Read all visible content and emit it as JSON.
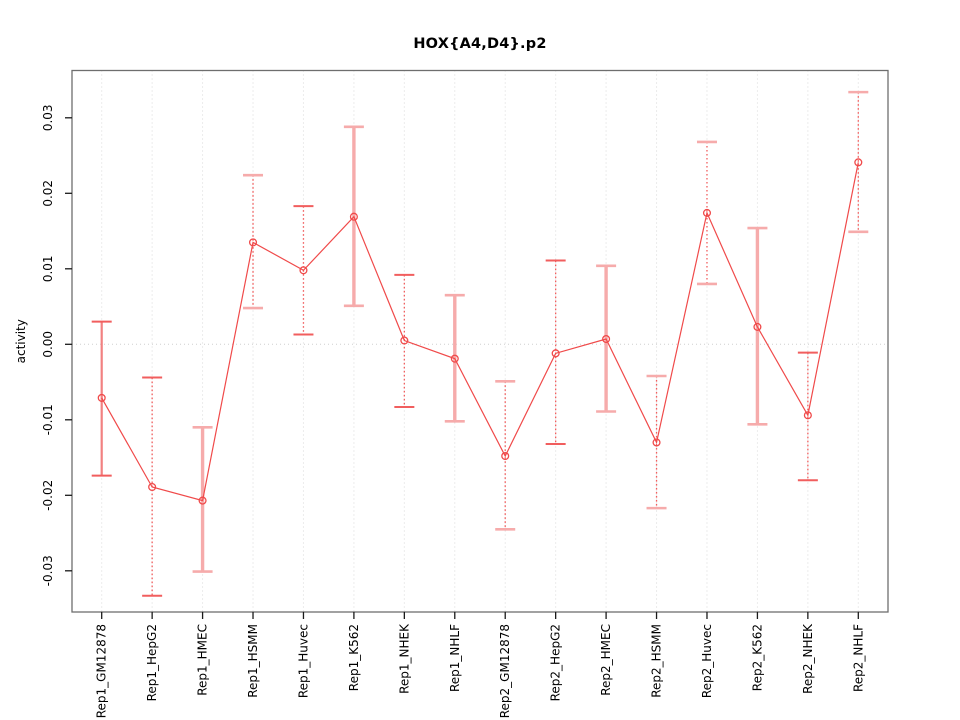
{
  "title": "HOX{A4,D4}.p2",
  "chart_data": {
    "type": "scatter",
    "title": "HOX{A4,D4}.p2",
    "xlabel": "",
    "ylabel": "activity",
    "ylim": [
      -0.0355,
      0.0363
    ],
    "yticks": [
      0.03,
      0.02,
      0.01,
      0.0,
      -0.01,
      -0.02,
      -0.03
    ],
    "ytick_labels": [
      "0.03",
      "0.02",
      "0.01",
      "0.00",
      "-0.01",
      "-0.02",
      "-0.03"
    ],
    "grid": "vertical dotted gridline at each category; dotted horizontal reference line at y=0; full box border",
    "legend": "none",
    "categories": [
      "Rep1_GM12878",
      "Rep1_HepG2",
      "Rep1_HMEC",
      "Rep1_HSMM",
      "Rep1_Huvec",
      "Rep1_K562",
      "Rep1_NHEK",
      "Rep1_NHLF",
      "Rep2_GM12878",
      "Rep2_HepG2",
      "Rep2_HMEC",
      "Rep2_HSMM",
      "Rep2_Huvec",
      "Rep2_K562",
      "Rep2_NHEK",
      "Rep2_NHLF"
    ],
    "series": [
      {
        "name": "activity",
        "marker": "open-circle",
        "connected": true,
        "values": [
          -0.0071,
          -0.0189,
          -0.0207,
          0.0135,
          0.0098,
          0.0169,
          0.0005,
          -0.0019,
          -0.0148,
          -0.0012,
          0.0007,
          -0.013,
          0.0174,
          0.0023,
          -0.0094,
          0.0241
        ],
        "error_high": [
          0.003,
          -0.0044,
          -0.011,
          0.0224,
          0.0183,
          0.0288,
          0.0092,
          0.0065,
          -0.0049,
          0.0111,
          0.0104,
          -0.0042,
          0.0268,
          0.0154,
          -0.0011,
          0.0334
        ],
        "error_low": [
          -0.0174,
          -0.0333,
          -0.0301,
          0.0048,
          0.0013,
          0.0051,
          -0.0083,
          -0.0102,
          -0.0245,
          -0.0132,
          -0.0089,
          -0.0217,
          0.008,
          -0.0106,
          -0.018,
          0.0149
        ],
        "bar_styles": [
          "medium",
          "dotted",
          "thick",
          "dotted",
          "dotted",
          "thick",
          "dotted",
          "thick",
          "dotted",
          "dotted",
          "thick",
          "dotted",
          "dotted",
          "thick",
          "dotted",
          "dotted"
        ],
        "cap_tints": [
          "red",
          "red",
          "pale",
          "pale",
          "red",
          "pale",
          "red",
          "pale",
          "pale",
          "red",
          "pale",
          "pale",
          "pale",
          "pale",
          "red",
          "pale"
        ]
      }
    ],
    "colors": {
      "line_and_marker": "#f04a4a",
      "errorbar_dotted": "#f15e5e",
      "errorbar_medium": "#f28181",
      "errorbar_thick_pale": "#f6abab",
      "cap_red": "#f15e5e",
      "cap_pale": "#f6abab",
      "gridline": "#d9d9d9",
      "zero_line": "#cfcfcf",
      "box_border": "#6e6e6e",
      "tick_mark": "#1a1a1a",
      "text": "#000000"
    }
  }
}
